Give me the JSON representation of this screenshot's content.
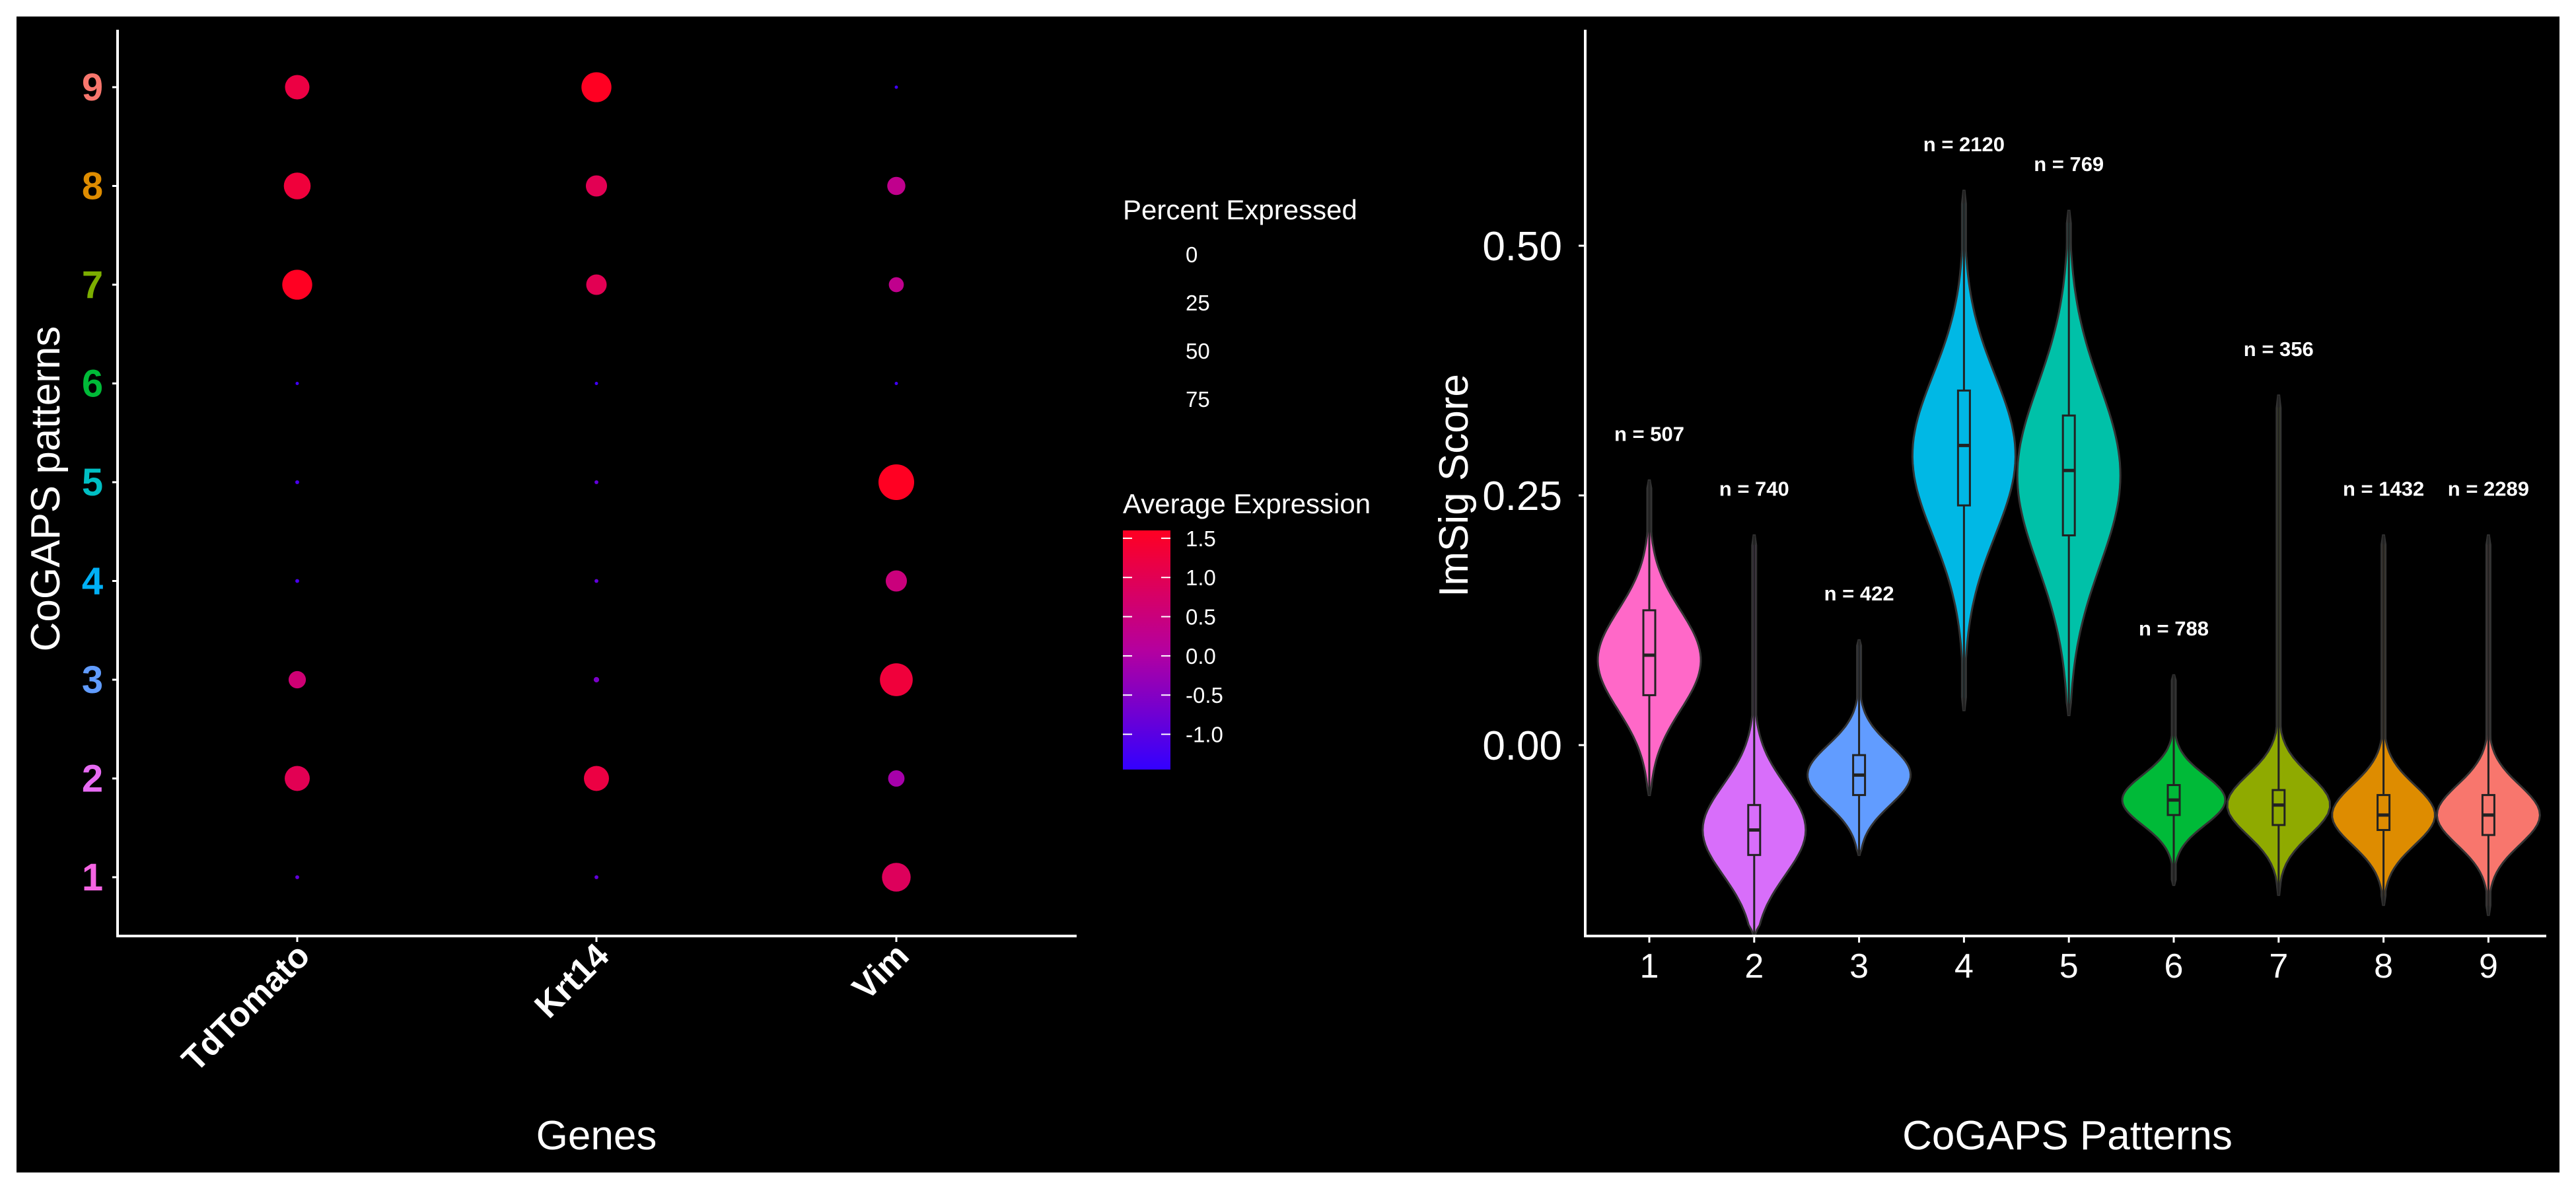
{
  "chart_data": [
    {
      "type": "dotplot",
      "xlabel": "Genes",
      "ylabel": "CoGAPS patterns",
      "genes": [
        "TdTomato",
        "Krt14",
        "Vim"
      ],
      "patterns": [
        "1",
        "2",
        "3",
        "4",
        "5",
        "6",
        "7",
        "8",
        "9"
      ],
      "pattern_colors": [
        "#F564E3",
        "#E76BF3",
        "#619CFF",
        "#00B0F6",
        "#00BFC4",
        "#00BA38",
        "#7CAE00",
        "#DE8C00",
        "#F8766D"
      ],
      "points": [
        {
          "gene": "TdTomato",
          "pattern": "1",
          "avg_expression": -0.9,
          "pct_expressed": 1
        },
        {
          "gene": "TdTomato",
          "pattern": "2",
          "avg_expression": 1.0,
          "pct_expressed": 42
        },
        {
          "gene": "TdTomato",
          "pattern": "3",
          "avg_expression": 0.6,
          "pct_expressed": 20
        },
        {
          "gene": "TdTomato",
          "pattern": "4",
          "avg_expression": -1.2,
          "pct_expressed": 1
        },
        {
          "gene": "TdTomato",
          "pattern": "5",
          "avg_expression": -1.2,
          "pct_expressed": 1
        },
        {
          "gene": "TdTomato",
          "pattern": "6",
          "avg_expression": -1.3,
          "pct_expressed": 0
        },
        {
          "gene": "TdTomato",
          "pattern": "7",
          "avg_expression": 1.6,
          "pct_expressed": 60
        },
        {
          "gene": "TdTomato",
          "pattern": "8",
          "avg_expression": 1.3,
          "pct_expressed": 48
        },
        {
          "gene": "TdTomato",
          "pattern": "9",
          "avg_expression": 1.2,
          "pct_expressed": 40
        },
        {
          "gene": "Krt14",
          "pattern": "1",
          "avg_expression": -0.9,
          "pct_expressed": 1
        },
        {
          "gene": "Krt14",
          "pattern": "2",
          "avg_expression": 1.2,
          "pct_expressed": 42
        },
        {
          "gene": "Krt14",
          "pattern": "3",
          "avg_expression": -0.6,
          "pct_expressed": 2
        },
        {
          "gene": "Krt14",
          "pattern": "4",
          "avg_expression": -0.9,
          "pct_expressed": 1
        },
        {
          "gene": "Krt14",
          "pattern": "5",
          "avg_expression": -0.9,
          "pct_expressed": 1
        },
        {
          "gene": "Krt14",
          "pattern": "6",
          "avg_expression": -1.3,
          "pct_expressed": 0
        },
        {
          "gene": "Krt14",
          "pattern": "7",
          "avg_expression": 1.0,
          "pct_expressed": 28
        },
        {
          "gene": "Krt14",
          "pattern": "8",
          "avg_expression": 1.0,
          "pct_expressed": 30
        },
        {
          "gene": "Krt14",
          "pattern": "9",
          "avg_expression": 1.6,
          "pct_expressed": 60
        },
        {
          "gene": "Vim",
          "pattern": "1",
          "avg_expression": 0.9,
          "pct_expressed": 55
        },
        {
          "gene": "Vim",
          "pattern": "2",
          "avg_expression": -0.1,
          "pct_expressed": 18
        },
        {
          "gene": "Vim",
          "pattern": "3",
          "avg_expression": 1.3,
          "pct_expressed": 72
        },
        {
          "gene": "Vim",
          "pattern": "4",
          "avg_expression": 0.5,
          "pct_expressed": 30
        },
        {
          "gene": "Vim",
          "pattern": "5",
          "avg_expression": 1.6,
          "pct_expressed": 85
        },
        {
          "gene": "Vim",
          "pattern": "6",
          "avg_expression": -1.3,
          "pct_expressed": 0
        },
        {
          "gene": "Vim",
          "pattern": "7",
          "avg_expression": 0.3,
          "pct_expressed": 15
        },
        {
          "gene": "Vim",
          "pattern": "8",
          "avg_expression": 0.3,
          "pct_expressed": 22
        },
        {
          "gene": "Vim",
          "pattern": "9",
          "avg_expression": -1.3,
          "pct_expressed": 0
        }
      ],
      "size_legend": {
        "title": "Percent Expressed",
        "values": [
          0,
          25,
          50,
          75
        ]
      },
      "color_legend": {
        "title": "Average Expression",
        "ticks": [
          1.5,
          1.0,
          0.5,
          0.0,
          -0.5,
          -1.0
        ],
        "tick_labels": [
          "1.5",
          "1.0",
          "0.5",
          "0.0",
          "-0.5",
          "-1.0"
        ],
        "range": [
          -1.45,
          1.6
        ],
        "low_color": "#3300FF",
        "high_color": "#FF0022"
      }
    },
    {
      "type": "violin",
      "xlabel": "CoGAPS Patterns",
      "ylabel": "ImSig Score",
      "categories": [
        "1",
        "2",
        "3",
        "4",
        "5",
        "6",
        "7",
        "8",
        "9"
      ],
      "y_ticks": [
        0.0,
        0.25,
        0.5
      ],
      "y_tick_labels": [
        "0.00",
        "0.25",
        "0.50"
      ],
      "ylim": [
        -0.19,
        0.71
      ],
      "series": [
        {
          "category": "1",
          "color": "#FF68C8",
          "n_label": "n = 507",
          "min": -0.05,
          "q1": 0.05,
          "median": 0.09,
          "q3": 0.135,
          "max": 0.265,
          "mode": 0.085,
          "spread": 0.05
        },
        {
          "category": "2",
          "color": "#D86EFA",
          "n_label": "n = 740",
          "min": -0.19,
          "q1": -0.11,
          "median": -0.085,
          "q3": -0.06,
          "max": 0.21,
          "mode": -0.085,
          "spread": 0.045
        },
        {
          "category": "3",
          "color": "#619CFF",
          "n_label": "n = 422",
          "min": -0.11,
          "q1": -0.05,
          "median": -0.03,
          "q3": -0.01,
          "max": 0.105,
          "mode": -0.03,
          "spread": 0.03
        },
        {
          "category": "4",
          "color": "#00B8E5",
          "n_label": "n = 2120",
          "min": 0.035,
          "q1": 0.24,
          "median": 0.3,
          "q3": 0.355,
          "max": 0.555,
          "mode": 0.29,
          "spread": 0.08
        },
        {
          "category": "5",
          "color": "#00C1A8",
          "n_label": "n = 769",
          "min": 0.03,
          "q1": 0.21,
          "median": 0.275,
          "q3": 0.33,
          "max": 0.535,
          "mode": 0.27,
          "spread": 0.09
        },
        {
          "category": "6",
          "color": "#00BA38",
          "n_label": "n = 788",
          "min": -0.14,
          "q1": -0.07,
          "median": -0.055,
          "q3": -0.04,
          "max": 0.07,
          "mode": -0.055,
          "spread": 0.025
        },
        {
          "category": "7",
          "color": "#8FAA00",
          "n_label": "n = 356",
          "min": -0.15,
          "q1": -0.08,
          "median": -0.06,
          "q3": -0.045,
          "max": 0.35,
          "mode": -0.06,
          "spread": 0.03
        },
        {
          "category": "8",
          "color": "#DE8C00",
          "n_label": "n = 1432",
          "min": -0.16,
          "q1": -0.085,
          "median": -0.07,
          "q3": -0.05,
          "max": 0.21,
          "mode": -0.07,
          "spread": 0.03
        },
        {
          "category": "9",
          "color": "#F8766D",
          "n_label": "n = 2289",
          "min": -0.17,
          "q1": -0.09,
          "median": -0.07,
          "q3": -0.05,
          "max": 0.21,
          "mode": -0.07,
          "spread": 0.03
        }
      ]
    }
  ]
}
